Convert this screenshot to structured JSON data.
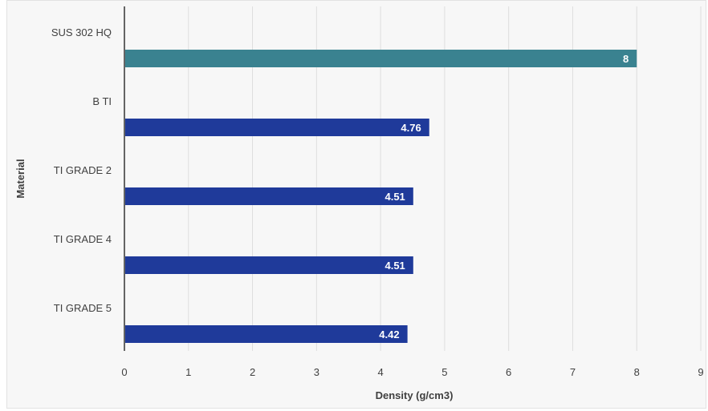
{
  "chart_data": {
    "type": "bar",
    "orientation": "horizontal",
    "title": "",
    "xlabel": "Density (g/cm3)",
    "ylabel": "Material",
    "xlim": [
      0,
      9
    ],
    "x_ticks": [
      "0",
      "1",
      "2",
      "3",
      "4",
      "5",
      "6",
      "7",
      "8",
      "9"
    ],
    "grid": "vertical",
    "legend": "none",
    "categories": [
      "SUS 302 HQ",
      "B TI",
      "TI GRADE 2",
      "TI GRADE 4",
      "TI GRADE 5"
    ],
    "values": [
      8,
      4.76,
      4.51,
      4.51,
      4.42
    ],
    "value_labels": [
      "8",
      "4.76",
      "4.51",
      "4.51",
      "4.42"
    ],
    "colors": [
      "#3a8290",
      "#1f3a9a",
      "#1f3a9a",
      "#1f3a9a",
      "#1f3a9a"
    ],
    "axis_color": "#333333",
    "grid_color": "#dedede",
    "label_color": "#404040",
    "value_label_color": "#ffffff"
  }
}
